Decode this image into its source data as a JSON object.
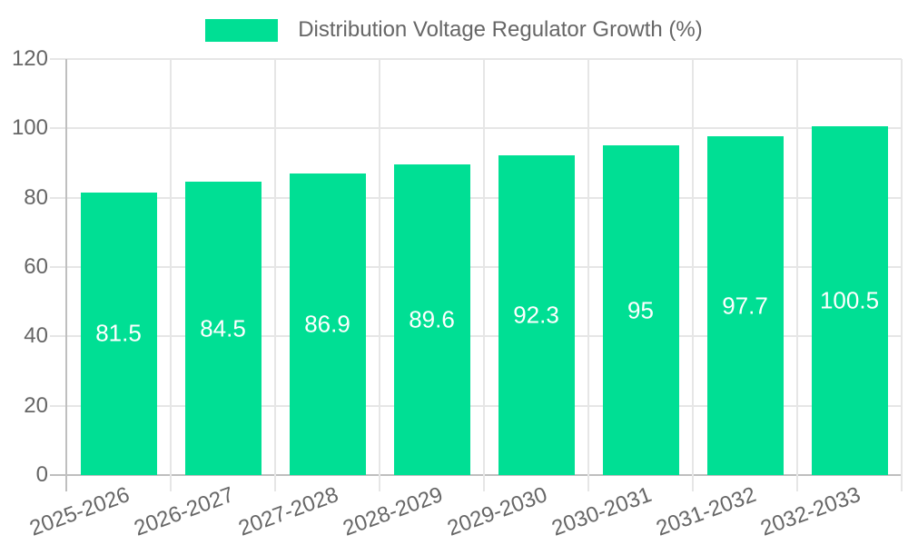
{
  "chart_data": {
    "type": "bar",
    "title": "Distribution Voltage Regulator Growth (%)",
    "categories": [
      "2025-2026",
      "2026-2027",
      "2027-2028",
      "2028-2029",
      "2029-2030",
      "2030-2031",
      "2031-2032",
      "2032-2033"
    ],
    "series": [
      {
        "name": "Distribution Voltage Regulator Growth (%)",
        "values": [
          81.5,
          84.5,
          86.9,
          89.6,
          92.3,
          95,
          97.7,
          100.5
        ],
        "value_labels": [
          "81.5",
          "84.5",
          "86.9",
          "89.6",
          "92.3",
          "95",
          "97.7",
          "100.5"
        ]
      }
    ],
    "xlabel": "",
    "ylabel": "",
    "ylim": [
      0,
      120
    ],
    "yticks": [
      0,
      20,
      40,
      60,
      80,
      100,
      120
    ],
    "grid": true,
    "legend_position": "top",
    "colors": {
      "bar": "#00DF94",
      "bar_label_text": "#ffffff",
      "axis_text": "#666666",
      "grid_line": "#e6e6e6",
      "axis_line": "#bfbfbf",
      "background": "#ffffff"
    }
  }
}
